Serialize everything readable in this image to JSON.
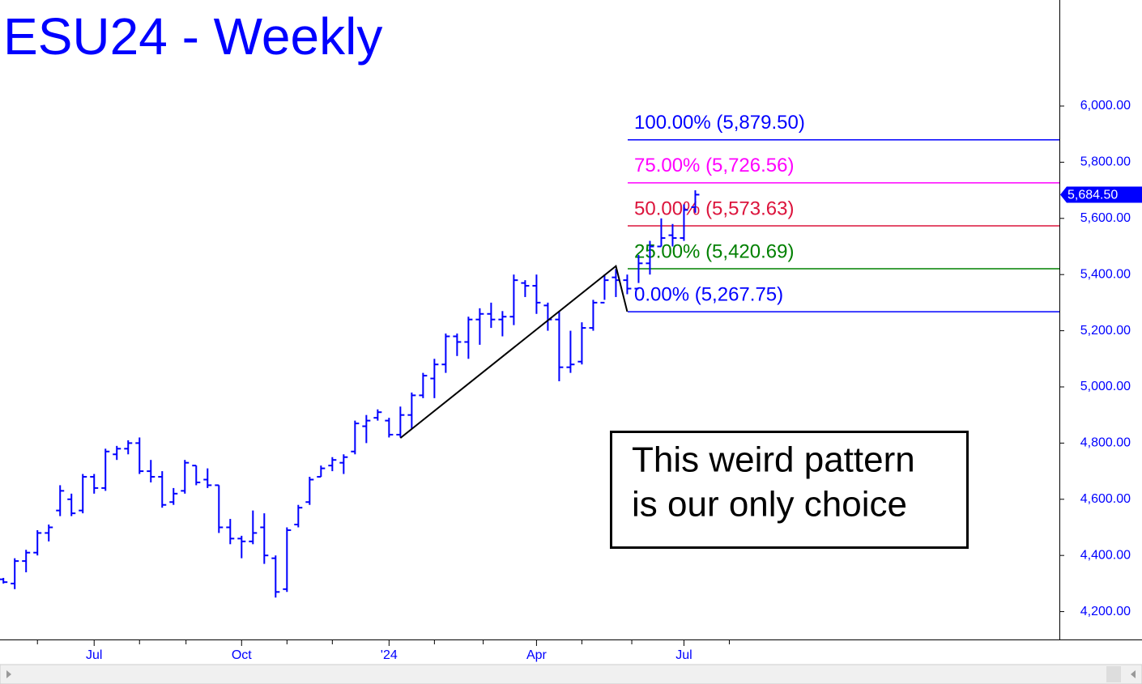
{
  "chart_data": {
    "type": "ohlc",
    "title": "ESU24 - Weekly",
    "color": "#0000ff",
    "lows": [
      4300,
      4280,
      4340,
      4400,
      4450,
      4540,
      4540,
      4550,
      4620,
      4630,
      4740,
      4760,
      4690,
      4660,
      4570,
      4580,
      4620,
      4650,
      4640,
      4480,
      4440,
      4390,
      4440,
      4370,
      4250,
      4270,
      4500,
      4580,
      4680,
      4700,
      4690,
      4760,
      4800,
      4880,
      4820,
      4820,
      4850,
      4960,
      4960,
      5050,
      5110,
      5100,
      5150,
      5210,
      5180,
      5220,
      5320,
      5260,
      5200,
      5020,
      5050,
      5080,
      5200,
      5310,
      5320,
      5330,
      5370,
      5400,
      5500,
      5500,
      5520,
      5620
    ],
    "highs": [
      4320,
      4390,
      4420,
      4490,
      4510,
      4650,
      4620,
      4690,
      4690,
      4780,
      4790,
      4810,
      4820,
      4740,
      4700,
      4640,
      4740,
      4720,
      4710,
      4650,
      4530,
      4470,
      4560,
      4550,
      4400,
      4500,
      4580,
      4680,
      4720,
      4750,
      4760,
      4880,
      4900,
      4920,
      4890,
      4930,
      4980,
      5050,
      5100,
      5190,
      5190,
      5250,
      5280,
      5300,
      5270,
      5400,
      5380,
      5400,
      5300,
      5270,
      5200,
      5230,
      5310,
      5400,
      5420,
      5400,
      5470,
      5520,
      5600,
      5580,
      5650,
      5700
    ],
    "opens": [
      4315,
      4300,
      4380,
      4410,
      4480,
      4560,
      4600,
      4560,
      4680,
      4640,
      4760,
      4780,
      4800,
      4700,
      4680,
      4590,
      4630,
      4720,
      4670,
      4650,
      4500,
      4460,
      4450,
      4500,
      4390,
      4280,
      4510,
      4590,
      4680,
      4720,
      4730,
      4770,
      4860,
      4890,
      4880,
      4830,
      4900,
      4970,
      5030,
      5080,
      5180,
      5160,
      5240,
      5260,
      5240,
      5250,
      5370,
      5360,
      5290,
      5240,
      5070,
      5090,
      5210,
      5300,
      5390,
      5380,
      5350,
      5440,
      5500,
      5540,
      5530,
      5640
    ],
    "closes": [
      4305,
      4380,
      4410,
      4480,
      4500,
      4630,
      4550,
      4680,
      4640,
      4770,
      4780,
      4800,
      4700,
      4680,
      4580,
      4620,
      4730,
      4660,
      4650,
      4500,
      4460,
      4450,
      4480,
      4400,
      4270,
      4490,
      4570,
      4670,
      4710,
      4740,
      4750,
      4870,
      4880,
      4910,
      4830,
      4900,
      4970,
      5040,
      5080,
      5180,
      5160,
      5240,
      5260,
      5240,
      5250,
      5380,
      5360,
      5300,
      5240,
      5070,
      5080,
      5210,
      5300,
      5380,
      5380,
      5350,
      5440,
      5500,
      5530,
      5530,
      5630,
      5684.5
    ],
    "last": {
      "value": 5684.5,
      "label": "5,684.50"
    },
    "xlim": [
      -0.3,
      93.1
    ],
    "ylim": [
      4100.8,
      6377.5
    ],
    "yticks": [
      {
        "value": 4200,
        "label": "4,200.00"
      },
      {
        "value": 4400,
        "label": "4,400.00"
      },
      {
        "value": 4600,
        "label": "4,600.00"
      },
      {
        "value": 4800,
        "label": "4,800.00"
      },
      {
        "value": 5000,
        "label": "5,000.00"
      },
      {
        "value": 5200,
        "label": "5,200.00"
      },
      {
        "value": 5400,
        "label": "5,400.00"
      },
      {
        "value": 5600,
        "label": "5,600.00"
      },
      {
        "value": 5800,
        "label": "5,800.00"
      },
      {
        "value": 6000,
        "label": "6,000.00"
      }
    ],
    "xticks": [
      {
        "value": 8,
        "label": "Jul"
      },
      {
        "value": 21,
        "label": "Oct"
      },
      {
        "value": 34,
        "label": "'24"
      },
      {
        "value": 47,
        "label": "Apr"
      },
      {
        "value": 60,
        "label": "Jul"
      }
    ],
    "xminor": [
      3,
      12,
      16.1,
      25,
      29,
      38,
      42.3,
      51,
      55.4,
      64
    ],
    "levels": [
      {
        "label": "100.00% (5,879.50)",
        "value": 5879.5,
        "color": "#0000ff"
      },
      {
        "label": "75.00% (5,726.56)",
        "value": 5726.56,
        "color": "#ff00ff"
      },
      {
        "label": "50.00% (5,573.63)",
        "value": 5573.63,
        "color": "#dc143c"
      },
      {
        "label": "25.00% (5,420.69)",
        "value": 5420.69,
        "color": "#008000"
      },
      {
        "label": "0.00% (5,267.75)",
        "value": 5267.75,
        "color": "#0000ff"
      }
    ],
    "pattern": {
      "x": [
        35,
        54,
        55
      ],
      "y": [
        4818,
        5430,
        5268
      ]
    },
    "annotation": [
      "This weird pattern",
      "is our only choice"
    ]
  }
}
